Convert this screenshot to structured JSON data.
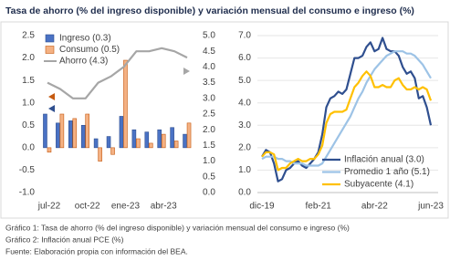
{
  "title": "Tasa de ahorro (% del ingreso disponible) y variación mensual del consumo e ingreso (%)",
  "notes": [
    "Gráfico 1: Tasa de ahorro (% del ingreso disponible) y variación mensual del consumo e ingreso (%)",
    "Gráfico 2: Inflación anual PCE (%)",
    "Fuente: Elaboración propia con información del BEA."
  ],
  "chart_data": [
    {
      "type": "bar",
      "categories": [
        "jul-22",
        null,
        null,
        "oct-22",
        null,
        null,
        "ene-23",
        null,
        null,
        "abr-23",
        null,
        null
      ],
      "series": [
        {
          "name": "Ingreso (0.3)",
          "color": "#4a72c4",
          "values": [
            0.75,
            0.55,
            0.6,
            0.5,
            0.2,
            0.25,
            0.7,
            0.4,
            0.35,
            0.4,
            0.45,
            0.3
          ]
        },
        {
          "name": "Consumo (0.5)",
          "color": "#f4b183",
          "values": [
            -0.1,
            0.75,
            0.65,
            0.75,
            -0.3,
            -0.15,
            1.95,
            0.2,
            0.1,
            0.3,
            0.15,
            0.55
          ]
        },
        {
          "name": "Ahorro (4.3)",
          "color": "#a6a6a6",
          "axis": "y2",
          "type": "line",
          "values": [
            3.5,
            3.3,
            3.0,
            3.0,
            3.5,
            3.7,
            4.0,
            4.5,
            4.5,
            4.6,
            4.5,
            4.3
          ]
        }
      ],
      "ylim": [
        -1.0,
        2.5
      ],
      "yticks": [
        {
          "value": -1.0,
          "label": "-1.0"
        },
        -0.5,
        {
          "value": 0,
          "label": "0.0"
        },
        0.5,
        {
          "value": 1,
          "label": "1.0"
        },
        1.5,
        {
          "value": 2,
          "label": "2.0"
        },
        2.5
      ],
      "y2lim": [
        0,
        5
      ],
      "y2ticks": [
        {
          "value": 0,
          "label": "0.0"
        },
        0.5,
        {
          "value": 1,
          "label": "1.0"
        },
        1.5,
        {
          "value": 2,
          "label": "2.0"
        },
        2.5,
        {
          "value": 3,
          "label": "3.0"
        },
        3.5,
        {
          "value": 4,
          "label": "4.0"
        },
        4.5,
        {
          "value": 5,
          "label": "5.0"
        }
      ],
      "grid": false,
      "legend": "top-left"
    },
    {
      "type": "line",
      "categories": [
        "dic-19",
        null,
        null,
        null,
        null,
        null,
        null,
        null,
        null,
        null,
        null,
        null,
        null,
        null,
        "feb-21",
        null,
        null,
        null,
        null,
        null,
        null,
        null,
        null,
        null,
        null,
        null,
        null,
        null,
        "abr-22",
        null,
        null,
        null,
        null,
        null,
        null,
        null,
        null,
        null,
        null,
        null,
        null,
        null,
        "jun-23"
      ],
      "series": [
        {
          "name": "Inflación anual (3.0)",
          "color": "#2f4f8f",
          "values": [
            1.6,
            1.9,
            1.8,
            1.3,
            0.5,
            0.6,
            1.0,
            1.1,
            1.3,
            1.4,
            1.2,
            1.1,
            1.3,
            1.5,
            1.8,
            2.6,
            3.8,
            4.2,
            4.3,
            4.5,
            4.4,
            4.6,
            5.3,
            6.0,
            6.0,
            6.1,
            6.5,
            6.7,
            6.3,
            6.4,
            6.9,
            6.4,
            6.3,
            6.3,
            6.1,
            5.6,
            5.3,
            5.4,
            5.1,
            4.2,
            4.3,
            3.8,
            3.0
          ]
        },
        {
          "name": "Promedio 1 año (5.1)",
          "color": "#9dc3e6",
          "values": [
            1.5,
            1.6,
            1.6,
            1.6,
            1.5,
            1.5,
            1.4,
            1.4,
            1.3,
            1.3,
            1.3,
            1.2,
            1.2,
            1.2,
            1.2,
            1.3,
            1.6,
            1.9,
            2.2,
            2.5,
            2.8,
            3.1,
            3.4,
            3.8,
            4.2,
            4.5,
            4.9,
            5.2,
            5.5,
            5.7,
            5.9,
            6.1,
            6.2,
            6.3,
            6.3,
            6.3,
            6.2,
            6.2,
            6.1,
            5.9,
            5.7,
            5.4,
            5.1
          ]
        },
        {
          "name": "Subyacente (4.1)",
          "color": "#ffc000",
          "values": [
            1.6,
            1.8,
            1.8,
            1.7,
            1.0,
            1.1,
            1.1,
            1.3,
            1.4,
            1.5,
            1.4,
            1.4,
            1.5,
            1.5,
            1.7,
            2.1,
            3.1,
            3.5,
            3.6,
            3.6,
            3.6,
            3.7,
            4.2,
            4.7,
            4.9,
            5.2,
            5.4,
            5.2,
            4.7,
            4.7,
            4.8,
            4.7,
            4.7,
            5.0,
            5.1,
            4.8,
            4.6,
            4.6,
            4.7,
            4.6,
            4.7,
            4.6,
            4.1
          ]
        }
      ],
      "ylim": [
        0,
        7
      ],
      "yticks": [
        {
          "value": 0,
          "label": "0.0"
        },
        {
          "value": 1,
          "label": "1.0"
        },
        {
          "value": 2,
          "label": "2.0"
        },
        {
          "value": 3,
          "label": "3.0"
        },
        {
          "value": 4,
          "label": "4.0"
        },
        {
          "value": 5,
          "label": "5.0"
        },
        {
          "value": 6,
          "label": "6.0"
        },
        {
          "value": 7,
          "label": "7.0"
        }
      ],
      "grid": true,
      "legend": "bottom-right"
    }
  ]
}
